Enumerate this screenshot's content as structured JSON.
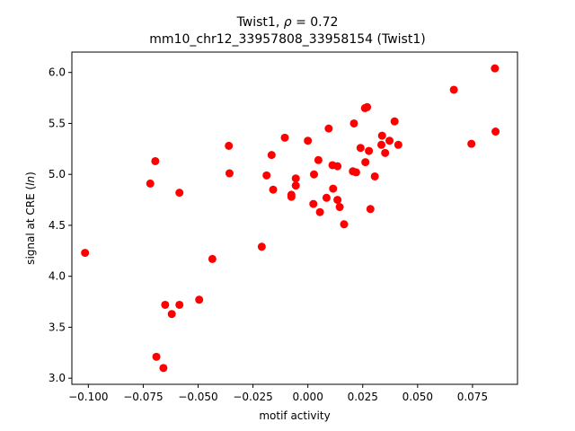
{
  "chart_data": {
    "type": "scatter",
    "title_line1_prefix": "Twist1, ",
    "title_line1_rho": "ρ",
    "title_line1_suffix": " = 0.72",
    "title_line2": "mm10_chr12_33957808_33958154 (Twist1)",
    "xlabel": "motif activity",
    "ylabel_prefix": "signal at CRE (",
    "ylabel_italic": "ln",
    "ylabel_suffix": ")",
    "xlim": [
      -0.1075,
      0.0955
    ],
    "ylim": [
      2.94,
      6.2
    ],
    "x_ticks": [
      -0.1,
      -0.075,
      -0.05,
      -0.025,
      0.0,
      0.025,
      0.05,
      0.075
    ],
    "x_tick_labels": [
      "−0.100",
      "−0.075",
      "−0.050",
      "−0.025",
      "0.000",
      "0.025",
      "0.050",
      "0.075"
    ],
    "y_ticks": [
      3.0,
      3.5,
      4.0,
      4.5,
      5.0,
      5.5,
      6.0
    ],
    "y_tick_labels": [
      "3.0",
      "3.5",
      "4.0",
      "4.5",
      "5.0",
      "5.5",
      "6.0"
    ],
    "marker_color": "#ff0000",
    "points": [
      [
        -0.1015,
        4.23
      ],
      [
        -0.0718,
        4.91
      ],
      [
        -0.0695,
        5.13
      ],
      [
        -0.069,
        3.21
      ],
      [
        -0.0658,
        3.1
      ],
      [
        -0.065,
        3.72
      ],
      [
        -0.062,
        3.63
      ],
      [
        -0.0585,
        3.72
      ],
      [
        -0.0585,
        4.82
      ],
      [
        -0.0495,
        3.77
      ],
      [
        -0.0435,
        4.17
      ],
      [
        -0.036,
        5.28
      ],
      [
        -0.0357,
        5.01
      ],
      [
        -0.021,
        4.29
      ],
      [
        -0.0188,
        4.99
      ],
      [
        -0.0165,
        5.19
      ],
      [
        -0.0158,
        4.85
      ],
      [
        -0.0105,
        5.36
      ],
      [
        -0.0075,
        4.78
      ],
      [
        -0.0075,
        4.8
      ],
      [
        -0.0055,
        4.89
      ],
      [
        -0.0055,
        4.96
      ],
      [
        0.0,
        5.33
      ],
      [
        0.0025,
        4.71
      ],
      [
        0.0028,
        5.0
      ],
      [
        0.0048,
        5.14
      ],
      [
        0.0055,
        4.63
      ],
      [
        0.0085,
        4.77
      ],
      [
        0.0095,
        5.45
      ],
      [
        0.0115,
        4.86
      ],
      [
        0.0112,
        5.09
      ],
      [
        0.0135,
        4.75
      ],
      [
        0.0135,
        5.08
      ],
      [
        0.0145,
        4.68
      ],
      [
        0.0165,
        4.51
      ],
      [
        0.0205,
        5.03
      ],
      [
        0.021,
        5.5
      ],
      [
        0.022,
        5.02
      ],
      [
        0.024,
        5.26
      ],
      [
        0.026,
        5.65
      ],
      [
        0.0262,
        5.12
      ],
      [
        0.027,
        5.66
      ],
      [
        0.0278,
        5.23
      ],
      [
        0.0285,
        4.66
      ],
      [
        0.0305,
        4.98
      ],
      [
        0.0335,
        5.29
      ],
      [
        0.0338,
        5.38
      ],
      [
        0.0352,
        5.21
      ],
      [
        0.0372,
        5.33
      ],
      [
        0.0395,
        5.52
      ],
      [
        0.0412,
        5.29
      ],
      [
        0.0665,
        5.83
      ],
      [
        0.0745,
        5.3
      ],
      [
        0.0852,
        6.04
      ],
      [
        0.0855,
        5.42
      ]
    ]
  }
}
